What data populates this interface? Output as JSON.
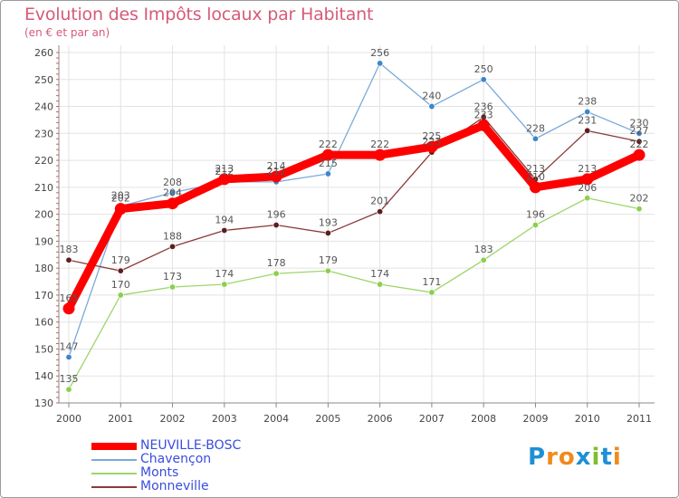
{
  "header": {
    "title": "Evolution des Impôts locaux par Habitant",
    "subtitle": "(en € et par an)"
  },
  "logo": {
    "text": "Proxiti",
    "letters": [
      "P",
      "r",
      "o",
      "x",
      "i",
      "t",
      "i"
    ],
    "colors": [
      "#1f8fd6",
      "#f08a1c",
      "#f08a1c",
      "#1f8fd6",
      "#7fbf2a",
      "#1f8fd6",
      "#f08a1c"
    ]
  },
  "chart_data": {
    "type": "line",
    "title": "Evolution des Impôts locaux par Habitant",
    "subtitle": "(en € et par an)",
    "xlabel": "",
    "ylabel": "",
    "x": [
      "2000",
      "2001",
      "2002",
      "2003",
      "2004",
      "2005",
      "2006",
      "2007",
      "2008",
      "2009",
      "2010",
      "2011"
    ],
    "yticks": [
      130,
      140,
      150,
      160,
      170,
      180,
      190,
      200,
      210,
      220,
      230,
      240,
      250,
      260
    ],
    "ylim": [
      130,
      260
    ],
    "grid": true,
    "legend_position": "bottom-left",
    "series": [
      {
        "name": "NEUVILLE-BOSC",
        "color": "#ff0000",
        "marker_color": "#ff0000",
        "width": "thick",
        "values": [
          165,
          202,
          204,
          213,
          214,
          222,
          222,
          225,
          233,
          210,
          213,
          222
        ]
      },
      {
        "name": "Chavençon",
        "color": "#7aaad8",
        "marker_color": "#3d86c9",
        "width": "thin",
        "values": [
          147,
          203,
          208,
          212,
          212,
          215,
          256,
          240,
          250,
          228,
          238,
          230
        ]
      },
      {
        "name": "Monts",
        "color": "#9ed56c",
        "marker_color": "#8ccf4e",
        "width": "thin",
        "values": [
          135,
          170,
          173,
          174,
          178,
          179,
          174,
          171,
          183,
          196,
          206,
          202
        ]
      },
      {
        "name": "Monneville",
        "color": "#8b3a3a",
        "marker_color": "#5c1e1e",
        "width": "thin",
        "values": [
          183,
          179,
          188,
          194,
          196,
          193,
          201,
          223,
          236,
          213,
          231,
          227
        ]
      }
    ]
  }
}
